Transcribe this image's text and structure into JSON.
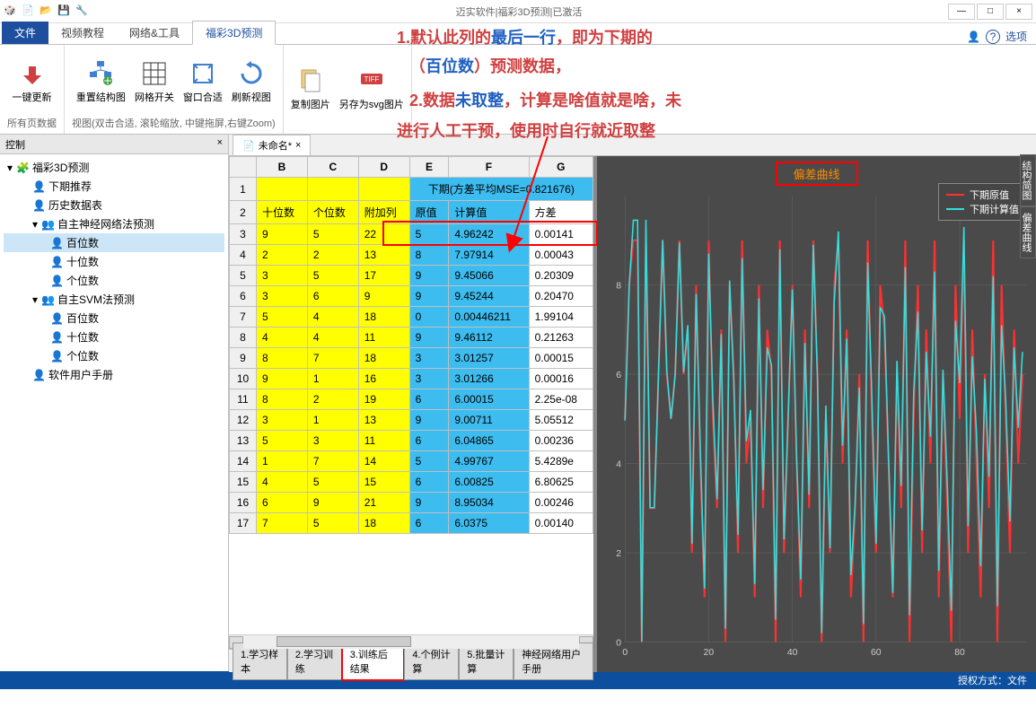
{
  "titlebar": {
    "title": "迈实软件|福彩3D预测|已激活"
  },
  "winbtns": {
    "min": "—",
    "max": "□",
    "close": "×"
  },
  "tabs": {
    "file": "文件",
    "t1": "视频教程",
    "t2": "网络&工具",
    "t3": "福彩3D预测",
    "opts": "选项",
    "help_icon": "?"
  },
  "ribbon": {
    "g1": {
      "i1": "一键更新",
      "label": "所有页数据"
    },
    "g2": {
      "i1": "重置结构图",
      "i2": "网格开关",
      "i3": "窗口合适",
      "i4": "刷新视图",
      "label": "视图(双击合适, 滚轮缩放, 中键拖屏,右键Zoom)"
    },
    "g3": {
      "i1": "复制图片",
      "i2": "另存为svg图片",
      "label": ""
    }
  },
  "ctrl": {
    "title": "控制",
    "close": "×"
  },
  "tree": {
    "root": "福彩3D预测",
    "n1": "下期推荐",
    "n2": "历史数据表",
    "n3": "自主神经网络法预测",
    "n3a": "百位数",
    "n3b": "十位数",
    "n3c": "个位数",
    "n4": "自主SVM法预测",
    "n4a": "百位数",
    "n4b": "十位数",
    "n4c": "个位数",
    "n5": "软件用户手册"
  },
  "doctab": {
    "name": "未命名*",
    "close": "×"
  },
  "table": {
    "cols": [
      "B",
      "C",
      "D",
      "E",
      "F",
      "G"
    ],
    "title_row": "下期(方差平均MSE=0.821676)",
    "hdr": {
      "b": "十位数",
      "c": "个位数",
      "d": "附加列",
      "e": "原值",
      "f": "计算值",
      "g": "方差"
    },
    "rows": [
      {
        "n": 3,
        "b": "9",
        "c": "5",
        "d": "22",
        "e": "5",
        "f": "4.96242",
        "g": "0.00141"
      },
      {
        "n": 4,
        "b": "2",
        "c": "2",
        "d": "13",
        "e": "8",
        "f": "7.97914",
        "g": "0.00043"
      },
      {
        "n": 5,
        "b": "3",
        "c": "5",
        "d": "17",
        "e": "9",
        "f": "9.45066",
        "g": "0.20309"
      },
      {
        "n": 6,
        "b": "3",
        "c": "6",
        "d": "9",
        "e": "9",
        "f": "9.45244",
        "g": "0.20470"
      },
      {
        "n": 7,
        "b": "5",
        "c": "4",
        "d": "18",
        "e": "0",
        "f": "0.00446211",
        "g": "1.99104"
      },
      {
        "n": 8,
        "b": "4",
        "c": "4",
        "d": "11",
        "e": "9",
        "f": "9.46112",
        "g": "0.21263"
      },
      {
        "n": 9,
        "b": "8",
        "c": "7",
        "d": "18",
        "e": "3",
        "f": "3.01257",
        "g": "0.00015"
      },
      {
        "n": 10,
        "b": "9",
        "c": "1",
        "d": "16",
        "e": "3",
        "f": "3.01266",
        "g": "0.00016"
      },
      {
        "n": 11,
        "b": "8",
        "c": "2",
        "d": "19",
        "e": "6",
        "f": "6.00015",
        "g": "2.25e-08"
      },
      {
        "n": 12,
        "b": "3",
        "c": "1",
        "d": "13",
        "e": "9",
        "f": "9.00711",
        "g": "5.05512"
      },
      {
        "n": 13,
        "b": "5",
        "c": "3",
        "d": "11",
        "e": "6",
        "f": "6.04865",
        "g": "0.00236"
      },
      {
        "n": 14,
        "b": "1",
        "c": "7",
        "d": "14",
        "e": "5",
        "f": "4.99767",
        "g": "5.4289e"
      },
      {
        "n": 15,
        "b": "4",
        "c": "5",
        "d": "15",
        "e": "6",
        "f": "6.00825",
        "g": "6.80625"
      },
      {
        "n": 16,
        "b": "6",
        "c": "9",
        "d": "21",
        "e": "9",
        "f": "8.95034",
        "g": "0.00246"
      },
      {
        "n": 17,
        "b": "7",
        "c": "5",
        "d": "18",
        "e": "6",
        "f": "6.0375",
        "g": "0.00140"
      }
    ]
  },
  "sheets": {
    "s1": "1.学习样本",
    "s2": "2.学习训练",
    "s3": "3.训练后结果",
    "s4": "4.个例计算",
    "s5": "5.批量计算",
    "s6": "神经网络用户手册"
  },
  "chart": {
    "title": "偏差曲线",
    "legend1": "下期原值",
    "legend2": "下期计算值",
    "legend1_color": "#ff3030",
    "legend2_color": "#30e0e0",
    "bg": "#4a4a4a",
    "grid": "#666",
    "xmax": 96,
    "ymax": 10,
    "xticks": [
      0,
      20,
      40,
      60,
      80
    ],
    "yticks": [
      0,
      2,
      4,
      6,
      8
    ],
    "series1": [
      5,
      8,
      9,
      9,
      0,
      9,
      3,
      3,
      6,
      9,
      6,
      5,
      6,
      9,
      6,
      7,
      2,
      8,
      4,
      1,
      9,
      5,
      3,
      7,
      0,
      8,
      6,
      2,
      9,
      4,
      5,
      1,
      8,
      3,
      7,
      6,
      0,
      9,
      2,
      5,
      8,
      4,
      1,
      7,
      3,
      9,
      6,
      0,
      5,
      2,
      8,
      9,
      4,
      7,
      1,
      3,
      6,
      0,
      9,
      5,
      2,
      8,
      7,
      4,
      1,
      6,
      3,
      9,
      0,
      5,
      8,
      2,
      7,
      4,
      9,
      1,
      6,
      3,
      0,
      8,
      5,
      9,
      2,
      7,
      4,
      1,
      6,
      3,
      9,
      0,
      8,
      5,
      2,
      7,
      4,
      6
    ],
    "series2": [
      4.96,
      7.98,
      9.45,
      9.45,
      0.004,
      9.46,
      3.01,
      3.01,
      6.0,
      9.01,
      6.05,
      5.0,
      6.01,
      8.95,
      6.04,
      7.1,
      2.2,
      7.8,
      4.3,
      1.2,
      8.7,
      5.4,
      3.2,
      6.9,
      0.3,
      8.1,
      5.8,
      2.4,
      8.6,
      4.5,
      5.2,
      1.3,
      7.7,
      3.4,
      6.6,
      6.2,
      0.5,
      8.8,
      2.3,
      5.1,
      7.9,
      4.2,
      1.4,
      6.7,
      3.3,
      8.9,
      5.9,
      0.2,
      5.3,
      2.1,
      7.6,
      9.2,
      4.4,
      6.8,
      1.5,
      3.1,
      5.7,
      0.4,
      8.5,
      5.5,
      2.2,
      7.5,
      7.3,
      4.1,
      1.1,
      6.3,
      3.5,
      8.4,
      0.6,
      5.6,
      7.4,
      2.5,
      6.5,
      4.6,
      8.3,
      1.6,
      6.1,
      3.6,
      0.7,
      7.2,
      5.8,
      9.3,
      2.6,
      6.4,
      4.7,
      1.7,
      5.9,
      3.7,
      8.2,
      0.8,
      7.1,
      5.4,
      2.7,
      6.6,
      4.8,
      6.5
    ]
  },
  "annot": {
    "l1a": "1.",
    "l1b": "默认此列的",
    "l1c": "最后一行",
    "l1d": "，即为下期的",
    "l2a": "（",
    "l2b": "百位数",
    "l2c": "）预测数据，",
    "l3a": "2.",
    "l3b": "数据",
    "l3c": "未取整",
    "l3d": "，计算是啥值就是啥，未",
    "l4": "进行人工干预，使用时自行就近取整"
  },
  "status": {
    "text": "授权方式：文件"
  },
  "sidetabs": {
    "t1": "结构简图",
    "t2": "偏差曲线"
  }
}
